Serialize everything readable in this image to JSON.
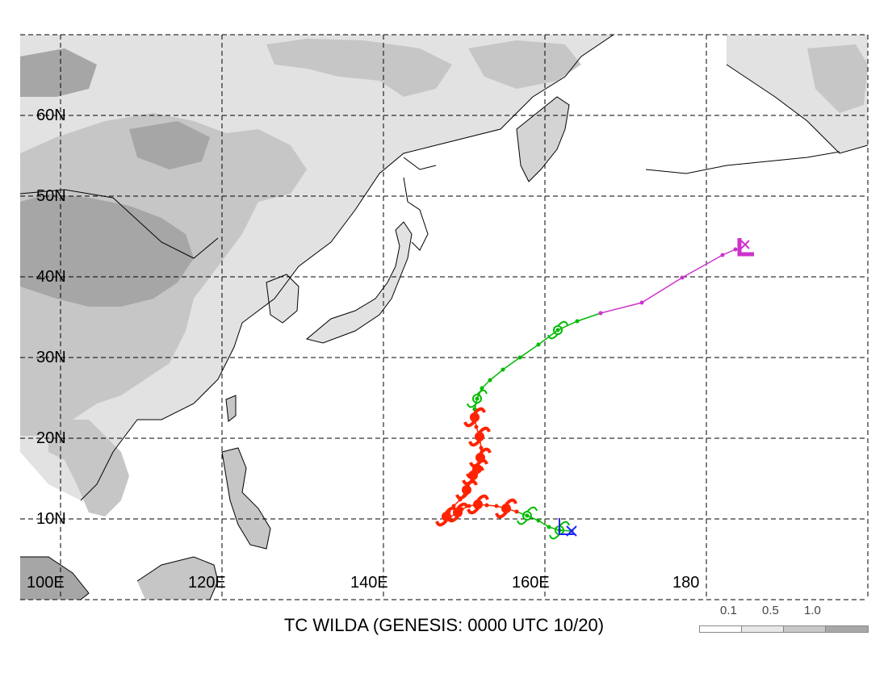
{
  "title": "TC WILDA (GENESIS: 0000 UTC 10/20)",
  "lat_labels": [
    "10N",
    "20N",
    "30N",
    "40N",
    "50N",
    "60N"
  ],
  "lon_labels": [
    "100E",
    "120E",
    "140E",
    "160E",
    "180"
  ],
  "legend": {
    "labels": [
      "0.1",
      "0.5",
      "1.0"
    ],
    "colors": [
      "#ffffff",
      "#e8e8e8",
      "#c8c8c8",
      "#a8a8a8"
    ]
  },
  "colors": {
    "tropical_depression": "#00bb00",
    "typhoon": "#ff2200",
    "extratropical": "#cc33cc",
    "genesis_marker": "#2222ff",
    "terrain_light": "#e2e2e2",
    "terrain_mid": "#c6c6c6",
    "terrain_dark": "#a6a6a6"
  },
  "track": {
    "genesis": {
      "lon": 163.3,
      "lat": 13.5
    },
    "segments": [
      {
        "stage": "tropical_depression",
        "points": [
          [
            163.3,
            13.5
          ],
          [
            161.8,
            13.6
          ],
          [
            160.5,
            14.0
          ],
          [
            159.2,
            14.8
          ],
          [
            157.8,
            15.4
          ],
          [
            156.5,
            15.9
          ]
        ]
      },
      {
        "stage": "typhoon",
        "points": [
          [
            156.5,
            15.9
          ],
          [
            155.2,
            16.3
          ],
          [
            154.0,
            16.6
          ],
          [
            152.8,
            16.7
          ],
          [
            151.7,
            16.8
          ],
          [
            150.6,
            16.6
          ],
          [
            149.7,
            16.2
          ],
          [
            148.9,
            15.6
          ],
          [
            148.2,
            15.2
          ],
          [
            147.8,
            15.3
          ],
          [
            148.1,
            15.9
          ],
          [
            148.7,
            16.6
          ],
          [
            149.5,
            17.4
          ],
          [
            150.3,
            18.6
          ],
          [
            151.0,
            19.9
          ],
          [
            151.6,
            21.2
          ],
          [
            152.0,
            22.5
          ],
          [
            152.1,
            23.8
          ],
          [
            151.9,
            25.2
          ],
          [
            151.5,
            26.4
          ],
          [
            151.3,
            27.6
          ],
          [
            151.3,
            28.6
          ]
        ]
      },
      {
        "stage": "tropical_depression",
        "points": [
          [
            151.3,
            28.6
          ],
          [
            151.6,
            29.9
          ],
          [
            152.2,
            31.2
          ],
          [
            153.2,
            32.2
          ],
          [
            154.8,
            33.5
          ],
          [
            156.9,
            35.0
          ],
          [
            159.2,
            36.6
          ],
          [
            161.6,
            38.4
          ],
          [
            164.0,
            39.5
          ],
          [
            166.9,
            40.5
          ]
        ]
      },
      {
        "stage": "extratropical",
        "points": [
          [
            166.9,
            40.5
          ],
          [
            172.0,
            41.8
          ],
          [
            177.0,
            44.9
          ],
          [
            182.0,
            47.7
          ],
          [
            183.6,
            48.4
          ]
        ]
      }
    ],
    "storm_symbols": {
      "typhoon": [
        [
          155.2,
          16.3
        ],
        [
          151.7,
          16.8
        ],
        [
          149.2,
          15.8
        ],
        [
          147.8,
          15.3
        ],
        [
          150.3,
          18.6
        ],
        [
          151.1,
          20.4
        ],
        [
          151.6,
          21.2
        ],
        [
          152.0,
          22.6
        ],
        [
          151.9,
          25.2
        ],
        [
          151.3,
          27.6
        ]
      ],
      "tropical_depression": [
        [
          161.8,
          13.6
        ],
        [
          157.8,
          15.4
        ],
        [
          151.6,
          29.9
        ],
        [
          161.6,
          38.4
        ]
      ]
    },
    "lows": [
      {
        "lon": 162.4,
        "lat": 13.7,
        "color": "genesis_marker"
      },
      {
        "lon": 184.7,
        "lat": 48.4,
        "color": "extratropical"
      }
    ]
  }
}
